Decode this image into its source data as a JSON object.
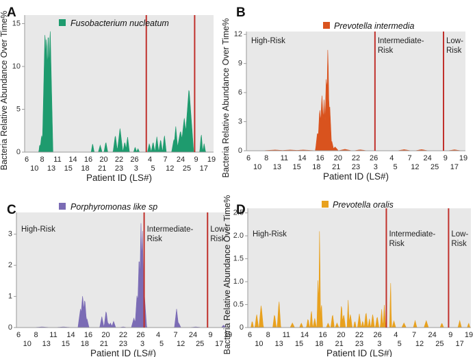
{
  "chart_data": [
    {
      "type": "area",
      "panel": "A",
      "legend": "Fusobacterium nucleatum",
      "color": "#1e9b6e",
      "xlabel": "Patient ID (LS#)",
      "ylabel": "Bacteria Relative Abundance Over Time%",
      "ylim": [
        0,
        16
      ],
      "yticks": [
        0,
        5,
        10,
        15
      ],
      "ytick_labels": [
        "0",
        "5",
        "10",
        "15"
      ],
      "xticks_top": [
        "6",
        "8",
        "11",
        "14",
        "16",
        "20",
        "22",
        "26",
        "4",
        "7",
        "24",
        "9",
        "19"
      ],
      "xticks_bottom": [
        "10",
        "13",
        "15",
        "18",
        "21",
        "23",
        "3",
        "5",
        "12",
        "25",
        "17"
      ],
      "region_labels": [],
      "dividers": [
        0.644,
        0.9
      ],
      "peaks": [
        [
          0.08,
          0.5,
          1.0
        ],
        [
          0.09,
          1.0,
          2.0
        ],
        [
          0.108,
          1.5,
          14.5
        ],
        [
          0.115,
          1.5,
          13.8
        ],
        [
          0.125,
          1.5,
          14.5
        ],
        [
          0.135,
          1.5,
          14.8
        ],
        [
          0.36,
          0.8,
          1.0
        ],
        [
          0.4,
          1.0,
          0.8
        ],
        [
          0.43,
          1.0,
          1.2
        ],
        [
          0.48,
          1.2,
          2.0
        ],
        [
          0.505,
          1.5,
          2.8
        ],
        [
          0.53,
          1.0,
          1.2
        ],
        [
          0.545,
          1.0,
          1.8
        ],
        [
          0.585,
          0.8,
          0.6
        ],
        [
          0.6,
          0.8,
          0.4
        ],
        [
          0.66,
          1.0,
          1.0
        ],
        [
          0.68,
          1.0,
          1.2
        ],
        [
          0.7,
          1.0,
          1.8
        ],
        [
          0.72,
          1.0,
          1.5
        ],
        [
          0.74,
          1.0,
          2.0
        ],
        [
          0.79,
          1.2,
          1.5
        ],
        [
          0.8,
          1.2,
          3.0
        ],
        [
          0.825,
          2.0,
          2.5
        ],
        [
          0.845,
          2.0,
          4.0
        ],
        [
          0.87,
          2.5,
          7.5
        ],
        [
          0.935,
          0.8,
          2.2
        ],
        [
          0.95,
          0.8,
          1.0
        ]
      ]
    },
    {
      "type": "area",
      "panel": "B",
      "legend": "Prevotella intermedia",
      "color": "#d9531e",
      "xlabel": "Patient ID (LS#)",
      "ylabel": "Bacteria Relative Abundance Over Time%",
      "ylim": [
        0,
        12.3
      ],
      "yticks": [
        0,
        3,
        6,
        9,
        12
      ],
      "ytick_labels": [
        "0",
        "3",
        "6",
        "9",
        "12"
      ],
      "xticks_top": [
        "6",
        "8",
        "11",
        "14",
        "16",
        "20",
        "22",
        "26",
        "4",
        "7",
        "24",
        "9",
        "19"
      ],
      "xticks_bottom": [
        "10",
        "13",
        "15",
        "18",
        "21",
        "23",
        "3",
        "5",
        "12",
        "25",
        "17"
      ],
      "region_labels": [
        "High-Risk",
        "Intermediate-Risk",
        "Low-Risk"
      ],
      "dividers": [
        0.587,
        0.9
      ],
      "peaks": [
        [
          0.13,
          6.0,
          0.08
        ],
        [
          0.2,
          6.0,
          0.08
        ],
        [
          0.26,
          6.0,
          0.08
        ],
        [
          0.325,
          1.0,
          2.0
        ],
        [
          0.335,
          1.0,
          4.5
        ],
        [
          0.345,
          1.2,
          5.8
        ],
        [
          0.355,
          1.0,
          5.4
        ],
        [
          0.365,
          0.9,
          8.0
        ],
        [
          0.372,
          0.8,
          11.2
        ],
        [
          0.38,
          1.0,
          5.0
        ],
        [
          0.39,
          1.0,
          1.0
        ],
        [
          0.405,
          1.5,
          0.4
        ],
        [
          0.45,
          3.0,
          0.15
        ],
        [
          0.52,
          3.0,
          0.1
        ],
        [
          0.72,
          3.0,
          0.12
        ],
        [
          0.8,
          3.0,
          0.12
        ],
        [
          0.95,
          3.0,
          0.1
        ]
      ]
    },
    {
      "type": "area",
      "panel": "C",
      "legend": "Porphyromonas like sp",
      "color": "#7b6cb5",
      "xlabel": "Patient ID (LS#)",
      "ylabel": "Bacteria Relative Abundance Over Time%",
      "ylim": [
        0,
        3.7
      ],
      "yticks": [
        0,
        1,
        2,
        3
      ],
      "ytick_labels": [
        "0",
        "1",
        "2",
        "3"
      ],
      "xticks_top": [
        "6",
        "8",
        "11",
        "14",
        "16",
        "20",
        "22",
        "26",
        "4",
        "7",
        "24",
        "9",
        "19"
      ],
      "xticks_bottom": [
        "10",
        "13",
        "15",
        "18",
        "21",
        "23",
        "3",
        "5",
        "12",
        "25",
        "17"
      ],
      "region_labels": [
        "High-Risk",
        "Intermediate-Risk",
        "Low-Risk"
      ],
      "dividers": [
        0.598,
        0.895
      ],
      "peaks": [
        [
          0.12,
          4.0,
          0.02
        ],
        [
          0.22,
          4.0,
          0.02
        ],
        [
          0.3,
          1.2,
          0.6
        ],
        [
          0.31,
          1.2,
          1.05
        ],
        [
          0.32,
          1.0,
          0.95
        ],
        [
          0.33,
          1.0,
          0.3
        ],
        [
          0.4,
          1.0,
          0.35
        ],
        [
          0.42,
          1.0,
          0.55
        ],
        [
          0.43,
          1.0,
          0.15
        ],
        [
          0.44,
          1.0,
          0.15
        ],
        [
          0.455,
          1.0,
          0.2
        ],
        [
          0.5,
          2.0,
          0.02
        ],
        [
          0.55,
          1.2,
          0.3
        ],
        [
          0.565,
          1.0,
          1.1
        ],
        [
          0.575,
          1.0,
          2.4
        ],
        [
          0.583,
          0.8,
          3.5
        ],
        [
          0.59,
          0.8,
          3.3
        ],
        [
          0.6,
          1.0,
          1.0
        ],
        [
          0.75,
          1.0,
          0.6
        ],
        [
          0.76,
          1.0,
          0.15
        ],
        [
          0.84,
          3.0,
          0.02
        ],
        [
          0.97,
          1.0,
          0.08
        ]
      ]
    },
    {
      "type": "area",
      "panel": "D",
      "legend": "Prevotella oralis",
      "color": "#e8a11e",
      "xlabel": "Patient ID (LS#)",
      "ylabel": "Bacteria Relative Abundance Over Time%",
      "ylim": [
        0,
        2.6
      ],
      "yticks": [
        0,
        0.5,
        1,
        1.5,
        2,
        2.5
      ],
      "ytick_labels": [
        "0",
        "0.5",
        "1.0",
        "1.5",
        "2.0",
        "2.5"
      ],
      "xticks_top": [
        "6",
        "8",
        "11",
        "14",
        "16",
        "20",
        "22",
        "26",
        "4",
        "7",
        "24",
        "9",
        "19"
      ],
      "xticks_bottom": [
        "10",
        "13",
        "15",
        "18",
        "21",
        "23",
        "3",
        "5",
        "12",
        "25",
        "17"
      ],
      "region_labels": [
        "High-Risk",
        "Intermediate-Risk",
        "Low-Risk"
      ],
      "dividers": [
        0.621,
        0.9
      ],
      "peaks": [
        [
          0.02,
          0.6,
          0.15
        ],
        [
          0.04,
          0.8,
          0.3
        ],
        [
          0.06,
          1.0,
          0.5
        ],
        [
          0.12,
          0.8,
          0.3
        ],
        [
          0.14,
          0.8,
          0.6
        ],
        [
          0.2,
          1.0,
          0.1
        ],
        [
          0.24,
          0.8,
          0.1
        ],
        [
          0.27,
          0.7,
          0.2
        ],
        [
          0.285,
          0.6,
          0.4
        ],
        [
          0.3,
          0.8,
          0.2
        ],
        [
          0.315,
          0.5,
          1.2
        ],
        [
          0.322,
          0.4,
          2.45
        ],
        [
          0.33,
          0.5,
          0.6
        ],
        [
          0.36,
          0.8,
          0.1
        ],
        [
          0.38,
          0.8,
          0.3
        ],
        [
          0.4,
          0.8,
          0.1
        ],
        [
          0.42,
          0.6,
          0.55
        ],
        [
          0.43,
          0.8,
          0.3
        ],
        [
          0.45,
          0.5,
          0.6
        ],
        [
          0.46,
          0.8,
          0.3
        ],
        [
          0.48,
          0.6,
          0.15
        ],
        [
          0.5,
          0.8,
          0.3
        ],
        [
          0.515,
          0.6,
          0.15
        ],
        [
          0.53,
          0.8,
          0.35
        ],
        [
          0.545,
          0.6,
          0.2
        ],
        [
          0.56,
          0.8,
          0.3
        ],
        [
          0.58,
          0.8,
          0.25
        ],
        [
          0.6,
          0.6,
          0.4
        ],
        [
          0.612,
          0.6,
          0.5
        ],
        [
          0.64,
          0.4,
          1.1
        ],
        [
          0.655,
          0.8,
          0.15
        ],
        [
          0.7,
          1.0,
          0.1
        ],
        [
          0.75,
          0.8,
          0.15
        ],
        [
          0.8,
          1.0,
          0.15
        ],
        [
          0.87,
          0.8,
          0.1
        ],
        [
          0.95,
          0.8,
          0.15
        ],
        [
          0.99,
          0.6,
          0.1
        ]
      ]
    }
  ]
}
